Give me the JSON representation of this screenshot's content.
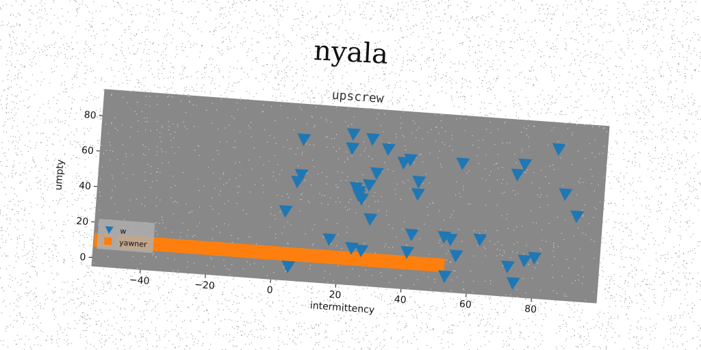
{
  "figure": {
    "title": "nyala"
  },
  "colors": {
    "plot_background": "#888888",
    "series_w": "#1f77b4",
    "series_yawner": "#ff7f0e"
  },
  "chart_data": {
    "type": "scatter",
    "title": "upscrew",
    "xlabel": "intermittency",
    "ylabel": "umpty",
    "xlim": [
      -55,
      100
    ],
    "ylim": [
      -5,
      95
    ],
    "x_ticks": [
      -40,
      -20,
      0,
      20,
      40,
      60,
      80
    ],
    "y_ticks": [
      0,
      20,
      40,
      60,
      80
    ],
    "x_tick_labels": [
      "−40",
      "−20",
      "0",
      "20",
      "40",
      "60",
      "80"
    ],
    "y_tick_labels": [
      "0",
      "20",
      "40",
      "60",
      "80"
    ],
    "grid": false,
    "legend": {
      "position": "lower-left",
      "entries": [
        "w",
        "yawner"
      ]
    },
    "series": [
      {
        "name": "w",
        "marker": "triangle-down",
        "points": [
          [
            7,
            75
          ],
          [
            22,
            80
          ],
          [
            28,
            78
          ],
          [
            33,
            73
          ],
          [
            22,
            72
          ],
          [
            38,
            66
          ],
          [
            40,
            68
          ],
          [
            56,
            68
          ],
          [
            30,
            59
          ],
          [
            73,
            64
          ],
          [
            75,
            70
          ],
          [
            85,
            80
          ],
          [
            7,
            55
          ],
          [
            6,
            51
          ],
          [
            28,
            52
          ],
          [
            24,
            50
          ],
          [
            25,
            48
          ],
          [
            25,
            46
          ],
          [
            26,
            44
          ],
          [
            43,
            56
          ],
          [
            43,
            49
          ],
          [
            88,
            55
          ],
          [
            92,
            43
          ],
          [
            3,
            34
          ],
          [
            29,
            33
          ],
          [
            42,
            26
          ],
          [
            52,
            26
          ],
          [
            54,
            25
          ],
          [
            63,
            26
          ],
          [
            17,
            20
          ],
          [
            24,
            16
          ],
          [
            27,
            15
          ],
          [
            41,
            16
          ],
          [
            56,
            16
          ],
          [
            77,
            16
          ],
          [
            80,
            18
          ],
          [
            72,
            12
          ],
          [
            53,
            4
          ],
          [
            74,
            3
          ],
          [
            5,
            3
          ]
        ]
      },
      {
        "name": "yawner",
        "marker": "square",
        "points": [
          [
            -52,
            10
          ],
          [
            -45,
            10
          ],
          [
            -40,
            10
          ],
          [
            -35,
            10
          ],
          [
            -30,
            10
          ],
          [
            -25,
            10
          ],
          [
            -20,
            10
          ],
          [
            -15,
            10
          ],
          [
            -10,
            10
          ],
          [
            -5,
            10
          ],
          [
            0,
            10
          ],
          [
            5,
            10
          ],
          [
            10,
            10
          ],
          [
            15,
            10
          ],
          [
            20,
            10
          ],
          [
            25,
            10
          ],
          [
            30,
            10
          ],
          [
            35,
            10
          ],
          [
            40,
            10
          ],
          [
            45,
            10
          ],
          [
            50,
            10
          ]
        ]
      }
    ]
  }
}
